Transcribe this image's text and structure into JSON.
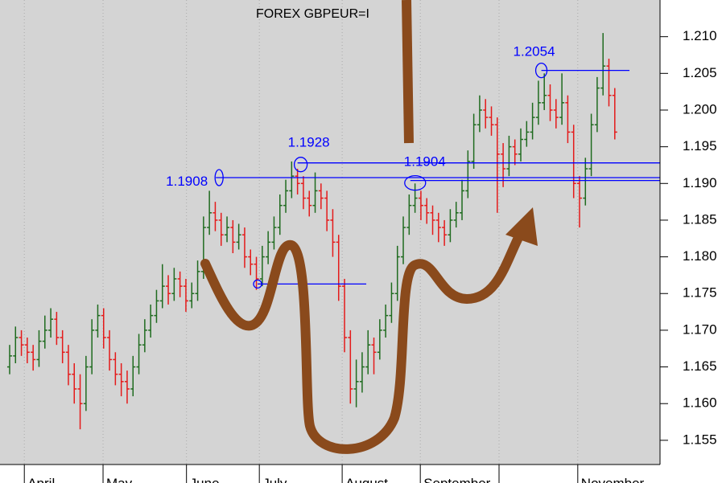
{
  "chart_data": {
    "type": "ohlc",
    "title": "FOREX GBPEUR=I",
    "up_color": "#1f6b1f",
    "down_color": "#e41a1a",
    "line_color": "#0000ff",
    "background": "#d4d4d4",
    "xlim": [
      -1.64,
      110.7
    ],
    "ylim": [
      1.1517,
      1.215
    ],
    "xticks": [
      {
        "value": 2.5,
        "label": "April"
      },
      {
        "value": 15.9,
        "label": "May"
      },
      {
        "value": 30.1,
        "label": "June"
      },
      {
        "value": 42.5,
        "label": "July"
      },
      {
        "value": 56.6,
        "label": "August"
      },
      {
        "value": 69.9,
        "label": "September"
      },
      {
        "value": 83.3,
        "label": null
      },
      {
        "value": 96.7,
        "label": "November"
      }
    ],
    "yticks": [
      1.155,
      {
        "value": 1.16,
        "label": "1.160"
      },
      1.165,
      {
        "value": 1.17,
        "label": "1.170"
      },
      1.175,
      {
        "value": 1.18,
        "label": "1.180"
      },
      1.185,
      {
        "value": 1.19,
        "label": "1.190"
      },
      1.195,
      {
        "value": 1.2,
        "label": "1.200"
      },
      1.205,
      {
        "value": 1.21,
        "label": "1.210"
      }
    ],
    "annotations": [
      {
        "value": 1.1908,
        "label": "1.1908",
        "x0": 35.1,
        "x1": 110.7
      },
      {
        "value": 1.1928,
        "label": "1.1928",
        "x0": 49.0,
        "x1": 110.7
      },
      {
        "value": 1.1904,
        "label": "1.1904",
        "x0": 68.2,
        "x1": 110.7
      },
      {
        "value": 1.2054,
        "label": "1.2054",
        "x0": 90.5,
        "x1": 105.5
      },
      {
        "value": 1.1763,
        "label": null,
        "x0": 42.2,
        "x1": 60.7
      }
    ],
    "ohlc": [
      [
        1.165,
        1.168,
        1.164,
        1.1665
      ],
      [
        1.1665,
        1.1705,
        1.1655,
        1.169
      ],
      [
        1.169,
        1.17,
        1.1665,
        1.168
      ],
      [
        1.168,
        1.169,
        1.1655,
        1.167
      ],
      [
        1.167,
        1.168,
        1.1645,
        1.166
      ],
      [
        1.166,
        1.17,
        1.165,
        1.1685
      ],
      [
        1.1685,
        1.172,
        1.1675,
        1.17
      ],
      [
        1.17,
        1.173,
        1.169,
        1.1715
      ],
      [
        1.1715,
        1.1725,
        1.168,
        1.169
      ],
      [
        1.169,
        1.17,
        1.1655,
        1.167
      ],
      [
        1.167,
        1.168,
        1.1625,
        1.164
      ],
      [
        1.164,
        1.1655,
        1.16,
        1.162
      ],
      [
        1.162,
        1.164,
        1.1565,
        1.16
      ],
      [
        1.16,
        1.1665,
        1.159,
        1.165
      ],
      [
        1.165,
        1.1715,
        1.164,
        1.17
      ],
      [
        1.17,
        1.1735,
        1.169,
        1.172
      ],
      [
        1.172,
        1.173,
        1.1675,
        1.169
      ],
      [
        1.169,
        1.17,
        1.1645,
        1.166
      ],
      [
        1.166,
        1.167,
        1.1625,
        1.164
      ],
      [
        1.164,
        1.1655,
        1.161,
        1.163
      ],
      [
        1.163,
        1.1645,
        1.16,
        1.162
      ],
      [
        1.162,
        1.1665,
        1.161,
        1.165
      ],
      [
        1.165,
        1.1695,
        1.164,
        1.168
      ],
      [
        1.168,
        1.1715,
        1.167,
        1.17
      ],
      [
        1.17,
        1.1735,
        1.169,
        1.172
      ],
      [
        1.172,
        1.1755,
        1.171,
        1.174
      ],
      [
        1.174,
        1.179,
        1.173,
        1.176
      ],
      [
        1.176,
        1.1775,
        1.1735,
        1.175
      ],
      [
        1.175,
        1.1785,
        1.174,
        1.177
      ],
      [
        1.177,
        1.178,
        1.1745,
        1.176
      ],
      [
        1.176,
        1.177,
        1.1725,
        1.174
      ],
      [
        1.174,
        1.1765,
        1.173,
        1.175
      ],
      [
        1.175,
        1.1795,
        1.174,
        1.178
      ],
      [
        1.178,
        1.1855,
        1.177,
        1.184
      ],
      [
        1.184,
        1.189,
        1.183,
        1.186
      ],
      [
        1.186,
        1.1875,
        1.1835,
        1.185
      ],
      [
        1.185,
        1.186,
        1.1815,
        1.183
      ],
      [
        1.183,
        1.1855,
        1.182,
        1.184
      ],
      [
        1.184,
        1.185,
        1.1805,
        1.182
      ],
      [
        1.182,
        1.1845,
        1.181,
        1.183
      ],
      [
        1.183,
        1.184,
        1.1785,
        1.18
      ],
      [
        1.18,
        1.181,
        1.1775,
        1.179
      ],
      [
        1.179,
        1.18,
        1.1755,
        1.177
      ],
      [
        1.177,
        1.1815,
        1.176,
        1.18
      ],
      [
        1.18,
        1.1835,
        1.179,
        1.182
      ],
      [
        1.182,
        1.1855,
        1.181,
        1.184
      ],
      [
        1.184,
        1.1885,
        1.183,
        1.187
      ],
      [
        1.187,
        1.1905,
        1.186,
        1.189
      ],
      [
        1.189,
        1.193,
        1.188,
        1.191
      ],
      [
        1.191,
        1.192,
        1.1885,
        1.19
      ],
      [
        1.19,
        1.191,
        1.1865,
        1.188
      ],
      [
        1.188,
        1.189,
        1.1855,
        1.187
      ],
      [
        1.187,
        1.1915,
        1.186,
        1.189
      ],
      [
        1.189,
        1.19,
        1.1865,
        1.188
      ],
      [
        1.188,
        1.189,
        1.1835,
        1.185
      ],
      [
        1.185,
        1.1865,
        1.18,
        1.182
      ],
      [
        1.182,
        1.183,
        1.174,
        1.176
      ],
      [
        1.176,
        1.177,
        1.167,
        1.169
      ],
      [
        1.169,
        1.17,
        1.16,
        1.162
      ],
      [
        1.162,
        1.166,
        1.1595,
        1.163
      ],
      [
        1.163,
        1.167,
        1.1615,
        1.165
      ],
      [
        1.165,
        1.17,
        1.164,
        1.168
      ],
      [
        1.168,
        1.169,
        1.164,
        1.167
      ],
      [
        1.167,
        1.1715,
        1.166,
        1.17
      ],
      [
        1.17,
        1.1735,
        1.169,
        1.172
      ],
      [
        1.172,
        1.1765,
        1.171,
        1.175
      ],
      [
        1.175,
        1.1815,
        1.174,
        1.18
      ],
      [
        1.18,
        1.1855,
        1.179,
        1.184
      ],
      [
        1.184,
        1.1885,
        1.183,
        1.187
      ],
      [
        1.187,
        1.19,
        1.186,
        1.188
      ],
      [
        1.188,
        1.189,
        1.185,
        1.187
      ],
      [
        1.187,
        1.188,
        1.1845,
        1.186
      ],
      [
        1.186,
        1.187,
        1.183,
        1.185
      ],
      [
        1.185,
        1.186,
        1.182,
        1.184
      ],
      [
        1.184,
        1.185,
        1.1815,
        1.183
      ],
      [
        1.183,
        1.1865,
        1.182,
        1.185
      ],
      [
        1.185,
        1.1875,
        1.184,
        1.186
      ],
      [
        1.186,
        1.1905,
        1.185,
        1.189
      ],
      [
        1.189,
        1.1945,
        1.188,
        1.193
      ],
      [
        1.193,
        1.1995,
        1.192,
        1.198
      ],
      [
        1.198,
        1.202,
        1.197,
        1.2
      ],
      [
        1.2,
        1.2015,
        1.1975,
        1.199
      ],
      [
        1.199,
        1.2005,
        1.1965,
        1.198
      ],
      [
        1.198,
        1.199,
        1.186,
        1.194
      ],
      [
        1.194,
        1.1955,
        1.1895,
        1.192
      ],
      [
        1.192,
        1.1965,
        1.191,
        1.195
      ],
      [
        1.195,
        1.196,
        1.1925,
        1.194
      ],
      [
        1.194,
        1.1975,
        1.193,
        1.196
      ],
      [
        1.196,
        1.1985,
        1.195,
        1.197
      ],
      [
        1.197,
        1.201,
        1.196,
        1.199
      ],
      [
        1.199,
        1.204,
        1.198,
        1.201
      ],
      [
        1.201,
        1.205,
        1.2,
        1.202
      ],
      [
        1.202,
        1.2035,
        1.1985,
        1.2
      ],
      [
        1.2,
        1.2015,
        1.1975,
        1.199
      ],
      [
        1.199,
        1.205,
        1.198,
        1.201
      ],
      [
        1.201,
        1.202,
        1.1955,
        1.197
      ],
      [
        1.197,
        1.198,
        1.188,
        1.19
      ],
      [
        1.19,
        1.191,
        1.184,
        1.188
      ],
      [
        1.188,
        1.1935,
        1.187,
        1.192
      ],
      [
        1.192,
        1.1995,
        1.191,
        1.198
      ],
      [
        1.198,
        1.2045,
        1.197,
        1.203
      ],
      [
        1.203,
        1.2105,
        1.202,
        1.206
      ],
      [
        1.206,
        1.207,
        1.2005,
        1.202
      ],
      [
        1.202,
        1.203,
        1.196,
        1.197
      ]
    ]
  }
}
